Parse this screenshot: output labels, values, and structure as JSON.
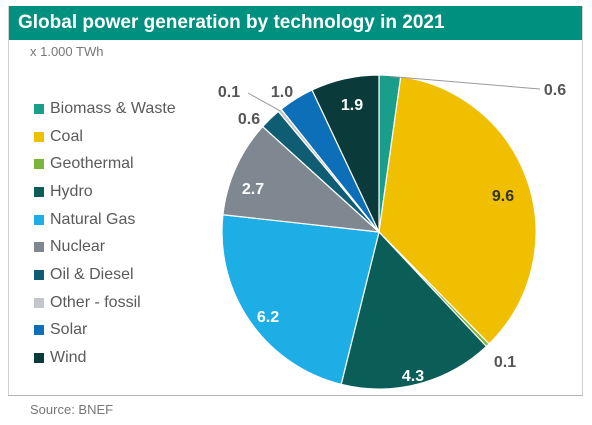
{
  "title": "Global power generation by technology in 2021",
  "unit_label": "x 1.000 TWh",
  "source": "Source: BNEF",
  "chart_data": {
    "type": "pie",
    "title": "Global power generation by technology in 2021",
    "unit": "x 1.000 TWh",
    "legend_position": "left",
    "series": [
      {
        "name": "Biomass & Waste",
        "value": 0.6,
        "label": "0.6",
        "color": "#1a9e8c"
      },
      {
        "name": "Coal",
        "value": 9.6,
        "label": "9.6",
        "color": "#f0c000"
      },
      {
        "name": "Geothermal",
        "value": 0.1,
        "label": "0.1",
        "color": "#7ab53a"
      },
      {
        "name": "Hydro",
        "value": 4.3,
        "label": "4.3",
        "color": "#0b5e58"
      },
      {
        "name": "Natural Gas",
        "value": 6.2,
        "label": "6.2",
        "color": "#1eaee6"
      },
      {
        "name": "Nuclear",
        "value": 2.7,
        "label": "2.7",
        "color": "#7f8891"
      },
      {
        "name": "Oil & Diesel",
        "value": 0.6,
        "label": "0.6",
        "color": "#0f5d72"
      },
      {
        "name": "Other - fossil",
        "value": 0.1,
        "label": "0.1",
        "color": "#c3c7cb"
      },
      {
        "name": "Solar",
        "value": 1.0,
        "label": "1.0",
        "color": "#0c6fb8"
      },
      {
        "name": "Wind",
        "value": 1.9,
        "label": "1.9",
        "color": "#0a3a3a"
      }
    ]
  }
}
